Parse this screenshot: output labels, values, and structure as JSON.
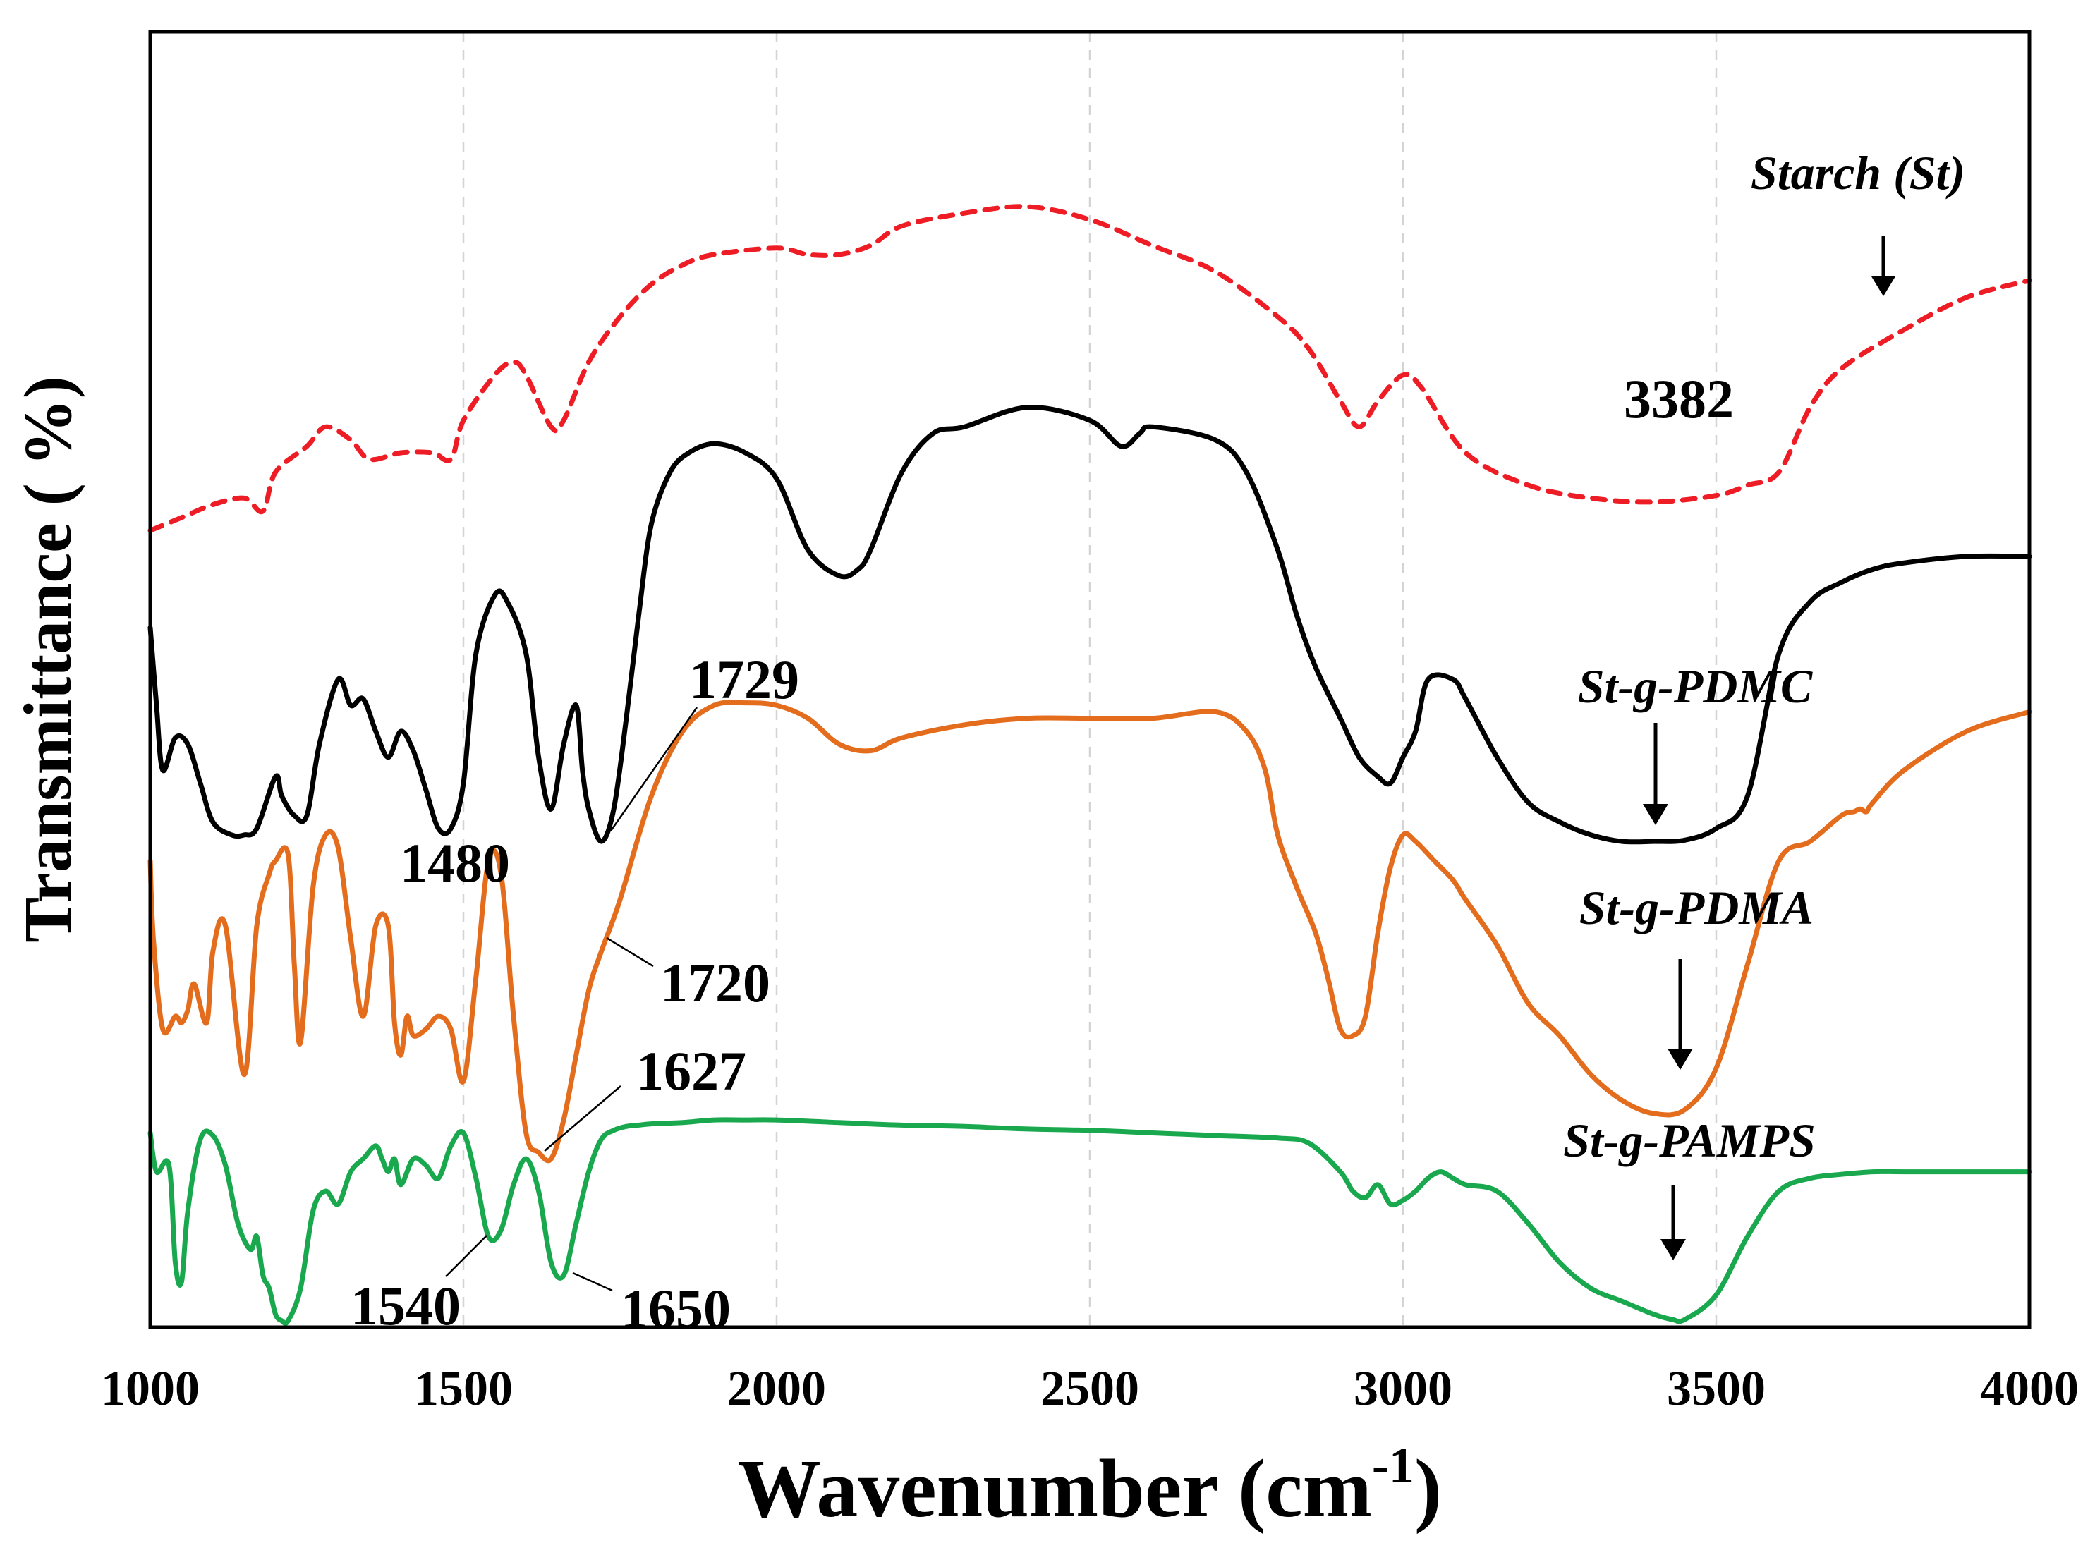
{
  "chart_data": {
    "type": "line",
    "title": "",
    "xlabel": "Wavenumber (cm",
    "xlabel_superscript": "-1",
    "xlabel_close": ")",
    "ylabel": "Transmittance ( %)",
    "xlim": [
      1000,
      4000
    ],
    "ylim": [
      0,
      100
    ],
    "xticks": [
      1000,
      1500,
      2000,
      2500,
      3000,
      3500,
      4000
    ],
    "grid": "vertical dashed",
    "legend": "inline labels",
    "series": [
      {
        "name": "Starch (St)",
        "color": "#ee1c24",
        "style": "dashed",
        "x": [
          1000,
          1050,
          1100,
          1150,
          1180,
          1200,
          1250,
          1280,
          1320,
          1350,
          1400,
          1450,
          1480,
          1500,
          1550,
          1580,
          1600,
          1640,
          1660,
          1700,
          1750,
          1800,
          1850,
          1900,
          2000,
          2050,
          2100,
          2150,
          2200,
          2300,
          2400,
          2500,
          2600,
          2700,
          2800,
          2850,
          2900,
          2930,
          2960,
          3000,
          3030,
          3100,
          3200,
          3300,
          3400,
          3500,
          3550,
          3600,
          3650,
          3700,
          3800,
          3900,
          4000
        ],
        "y": [
          61.5,
          62.5,
          63.5,
          64.0,
          63.0,
          66.0,
          68.0,
          69.5,
          68.5,
          67.0,
          67.5,
          67.5,
          67.0,
          70.0,
          73.5,
          74.5,
          73.5,
          69.5,
          70.0,
          74.5,
          78.0,
          80.5,
          82.0,
          82.8,
          83.3,
          82.8,
          82.8,
          83.5,
          85.0,
          86.0,
          86.5,
          85.5,
          83.5,
          81.5,
          78.0,
          75.5,
          71.5,
          69.5,
          71.5,
          73.5,
          72.5,
          67.5,
          65.0,
          64.0,
          63.7,
          64.2,
          65.0,
          66.0,
          71.0,
          74.0,
          77.0,
          79.5,
          80.8
        ]
      },
      {
        "name": "St-g-PDMC",
        "color": "#000000",
        "style": "solid",
        "x": [
          1000,
          1010,
          1020,
          1040,
          1060,
          1080,
          1100,
          1130,
          1150,
          1170,
          1200,
          1210,
          1230,
          1250,
          1270,
          1300,
          1320,
          1340,
          1360,
          1380,
          1400,
          1420,
          1440,
          1460,
          1480,
          1500,
          1520,
          1550,
          1570,
          1600,
          1620,
          1640,
          1660,
          1680,
          1690,
          1700,
          1720,
          1740,
          1760,
          1780,
          1800,
          1830,
          1860,
          1900,
          1950,
          2000,
          2050,
          2100,
          2130,
          2150,
          2200,
          2250,
          2300,
          2400,
          2500,
          2550,
          2580,
          2600,
          2700,
          2750,
          2800,
          2830,
          2860,
          2900,
          2930,
          2960,
          2980,
          3000,
          3020,
          3040,
          3080,
          3100,
          3150,
          3200,
          3250,
          3300,
          3350,
          3400,
          3450,
          3500,
          3550,
          3600,
          3650,
          3700,
          3750,
          3800,
          3900,
          4000
        ],
        "y": [
          54.0,
          48.0,
          43.0,
          45.5,
          45.0,
          42.0,
          39.0,
          38.0,
          38.0,
          38.5,
          42.5,
          41.0,
          39.5,
          39.5,
          45.0,
          50.0,
          48.0,
          48.5,
          46.0,
          44.0,
          46.0,
          44.5,
          41.5,
          38.5,
          38.5,
          42.0,
          52.0,
          56.5,
          56.0,
          52.0,
          44.0,
          40.0,
          45.0,
          48.0,
          43.0,
          40.0,
          37.5,
          40.0,
          47.0,
          55.0,
          62.0,
          66.0,
          67.5,
          68.2,
          67.5,
          65.5,
          60.0,
          58.0,
          58.5,
          60.0,
          66.0,
          69.0,
          69.5,
          71.0,
          70.0,
          68.0,
          69.0,
          69.5,
          68.5,
          66.0,
          60.0,
          55.0,
          51.0,
          47.0,
          44.0,
          42.5,
          42.0,
          44.0,
          46.0,
          50.0,
          50.0,
          48.5,
          44.0,
          40.5,
          39.0,
          38.0,
          37.5,
          37.5,
          37.6,
          38.5,
          41.0,
          52.0,
          56.0,
          57.5,
          58.5,
          59.0,
          59.5,
          59.5
        ]
      },
      {
        "name": "St-g-PDMA",
        "color": "#e36c1d",
        "style": "solid",
        "x": [
          1000,
          1005,
          1020,
          1040,
          1050,
          1060,
          1070,
          1090,
          1100,
          1120,
          1150,
          1170,
          1190,
          1200,
          1220,
          1230,
          1240,
          1260,
          1280,
          1300,
          1320,
          1340,
          1360,
          1380,
          1390,
          1400,
          1410,
          1420,
          1440,
          1460,
          1480,
          1500,
          1520,
          1540,
          1560,
          1580,
          1600,
          1620,
          1640,
          1660,
          1680,
          1700,
          1720,
          1750,
          1800,
          1850,
          1900,
          1950,
          2000,
          2050,
          2100,
          2150,
          2200,
          2300,
          2400,
          2500,
          2600,
          2700,
          2750,
          2780,
          2800,
          2830,
          2860,
          2880,
          2900,
          2920,
          2940,
          2960,
          2980,
          3000,
          3020,
          3050,
          3080,
          3100,
          3150,
          3200,
          3250,
          3300,
          3350,
          3400,
          3450,
          3500,
          3550,
          3600,
          3650,
          3700,
          3720,
          3730,
          3740,
          3750,
          3800,
          3900,
          4000
        ],
        "y": [
          36.0,
          30.0,
          23.0,
          24.0,
          23.5,
          24.5,
          26.5,
          23.5,
          29.0,
          31.0,
          19.5,
          31.0,
          35.0,
          36.0,
          36.5,
          28.0,
          22.0,
          34.0,
          38.0,
          37.0,
          30.0,
          24.0,
          31.0,
          31.0,
          23.5,
          21.0,
          24.0,
          22.5,
          23.0,
          24.0,
          23.0,
          19.0,
          27.0,
          36.0,
          35.0,
          24.0,
          15.0,
          13.5,
          13.0,
          16.0,
          21.0,
          26.0,
          29.0,
          33.0,
          41.0,
          46.0,
          48.0,
          48.2,
          48.0,
          47.0,
          45.0,
          44.5,
          45.5,
          46.5,
          47.0,
          47.0,
          47.0,
          47.5,
          46.0,
          43.0,
          38.0,
          34.0,
          30.5,
          27.0,
          23.0,
          22.5,
          24.0,
          30.5,
          35.5,
          38.0,
          37.5,
          36.0,
          34.5,
          33.0,
          29.5,
          25.0,
          22.5,
          19.5,
          17.5,
          16.5,
          16.8,
          20.0,
          28.0,
          36.0,
          37.5,
          39.5,
          39.8,
          40.0,
          39.8,
          40.5,
          43.0,
          46.0,
          47.5
        ]
      },
      {
        "name": "St-g-PAMPS",
        "color": "#19a84e",
        "style": "solid",
        "x": [
          1000,
          1010,
          1030,
          1040,
          1050,
          1060,
          1080,
          1100,
          1120,
          1140,
          1160,
          1170,
          1180,
          1190,
          1200,
          1210,
          1220,
          1240,
          1260,
          1280,
          1300,
          1320,
          1340,
          1360,
          1370,
          1380,
          1390,
          1400,
          1420,
          1440,
          1460,
          1480,
          1500,
          1520,
          1540,
          1560,
          1580,
          1600,
          1620,
          1640,
          1660,
          1680,
          1700,
          1720,
          1740,
          1760,
          1780,
          1800,
          1850,
          1900,
          1950,
          2000,
          2100,
          2200,
          2300,
          2400,
          2500,
          2600,
          2700,
          2800,
          2850,
          2900,
          2920,
          2940,
          2960,
          2980,
          3000,
          3020,
          3040,
          3060,
          3080,
          3100,
          3150,
          3200,
          3250,
          3300,
          3350,
          3400,
          3430,
          3450,
          3500,
          3550,
          3600,
          3650,
          3700,
          3750,
          3800,
          3900,
          4000
        ],
        "y": [
          15.0,
          12.0,
          12.5,
          5.0,
          3.5,
          9.0,
          14.5,
          14.8,
          12.5,
          8.0,
          6.0,
          7.0,
          4.0,
          3.0,
          1.0,
          0.5,
          0.5,
          3.0,
          9.0,
          10.5,
          9.5,
          12.0,
          13.0,
          14.0,
          13.0,
          12.0,
          13.0,
          11.0,
          13.0,
          12.5,
          11.5,
          14.0,
          15.0,
          11.5,
          7.0,
          7.5,
          11.0,
          13.0,
          10.5,
          5.0,
          4.0,
          8.0,
          12.0,
          14.5,
          15.2,
          15.5,
          15.6,
          15.7,
          15.8,
          16.0,
          16.0,
          16.0,
          15.8,
          15.6,
          15.5,
          15.3,
          15.2,
          15.0,
          14.8,
          14.6,
          14.2,
          12.0,
          10.5,
          10.0,
          11.0,
          9.5,
          9.8,
          10.5,
          11.5,
          12.0,
          11.5,
          11.0,
          10.5,
          8.0,
          5.0,
          3.0,
          2.0,
          1.0,
          0.6,
          0.6,
          2.5,
          7.0,
          10.5,
          11.5,
          11.8,
          12.0,
          12.0,
          12.0,
          12.0
        ]
      }
    ],
    "annotations": [
      "3382",
      "1729",
      "1480",
      "1720",
      "1627",
      "1540",
      "1650"
    ]
  }
}
